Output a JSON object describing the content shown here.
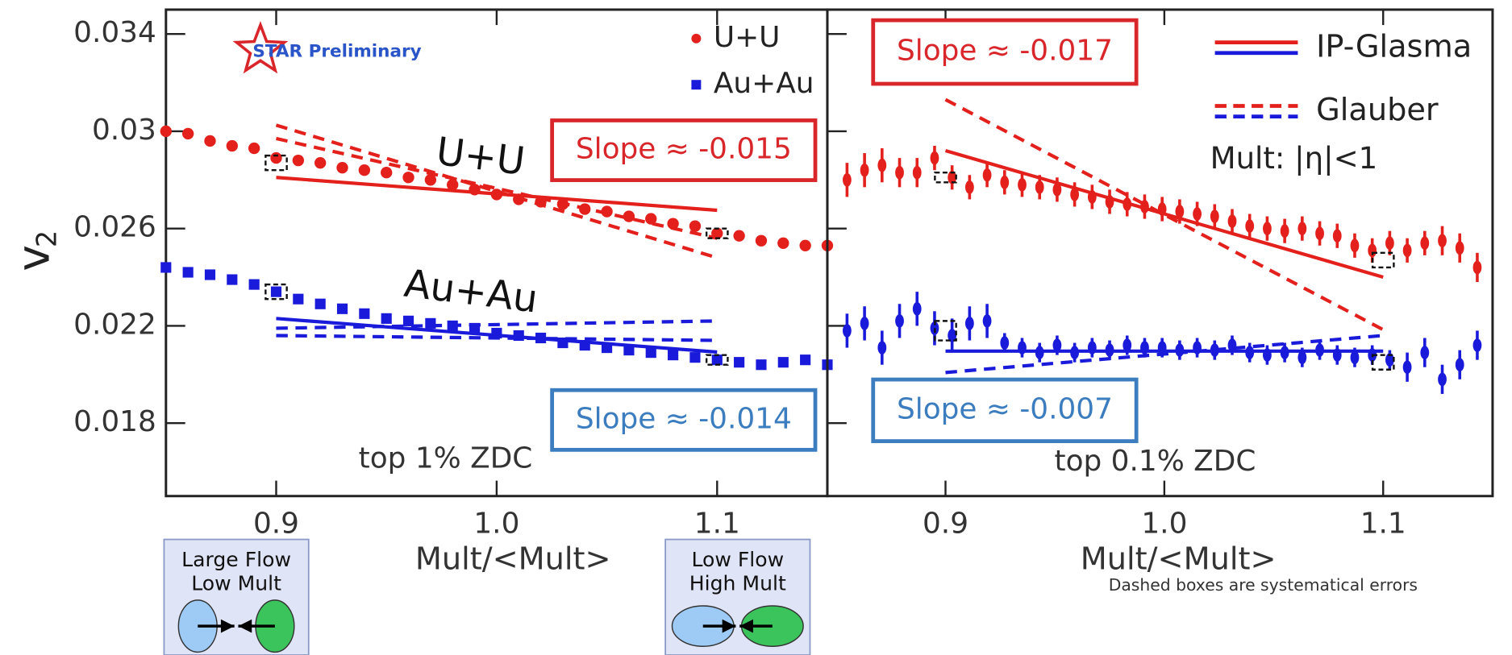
{
  "ylabel": "v",
  "ylabel_subscript": "2",
  "chart_data": [
    {
      "type": "scatter",
      "xlabel": "Mult/<Mult>",
      "xlim": [
        0.85,
        1.15
      ],
      "ylim": [
        0.015,
        0.035
      ],
      "xticks": [
        0.9,
        {
          "value": 1,
          "label": "1.0"
        },
        1.1
      ],
      "yticks": [
        0.018,
        0.022,
        0.026,
        0.03,
        0.034
      ],
      "legend": "upper right",
      "logo": "STAR Preliminary",
      "series": [
        {
          "name": "U+U",
          "color": "#e3201b",
          "marker": "circle",
          "x": [
            0.85,
            0.86,
            0.87,
            0.88,
            0.89,
            0.9,
            0.91,
            0.92,
            0.93,
            0.94,
            0.95,
            0.96,
            0.97,
            0.98,
            0.99,
            1.0,
            1.01,
            1.02,
            1.03,
            1.04,
            1.05,
            1.06,
            1.07,
            1.08,
            1.09,
            1.1,
            1.11,
            1.12,
            1.13,
            1.14,
            1.15
          ],
          "values": [
            0.03,
            0.0299,
            0.0296,
            0.0294,
            0.0293,
            0.0289,
            0.0288,
            0.0287,
            0.0285,
            0.0284,
            0.0283,
            0.0281,
            0.028,
            0.0278,
            0.0276,
            0.0274,
            0.0272,
            0.0271,
            0.027,
            0.0268,
            0.0267,
            0.0265,
            0.0264,
            0.0262,
            0.0261,
            0.0258,
            0.0257,
            0.0255,
            0.0254,
            0.0253,
            0.0253
          ]
        },
        {
          "name": "Au+Au",
          "color": "#1a1adb",
          "marker": "square",
          "x": [
            0.85,
            0.86,
            0.87,
            0.88,
            0.89,
            0.9,
            0.91,
            0.92,
            0.93,
            0.94,
            0.95,
            0.96,
            0.97,
            0.98,
            0.99,
            1.0,
            1.01,
            1.02,
            1.03,
            1.04,
            1.05,
            1.06,
            1.07,
            1.08,
            1.09,
            1.1,
            1.11,
            1.12,
            1.13,
            1.14,
            1.15
          ],
          "values": [
            0.0244,
            0.0242,
            0.0241,
            0.0239,
            0.0237,
            0.0234,
            0.0231,
            0.0229,
            0.0227,
            0.0225,
            0.0223,
            0.0222,
            0.0221,
            0.022,
            0.0219,
            0.0217,
            0.0216,
            0.0215,
            0.0213,
            0.0212,
            0.0211,
            0.021,
            0.0209,
            0.0208,
            0.0207,
            0.0206,
            0.0205,
            0.0204,
            0.0205,
            0.0206,
            0.0204
          ]
        }
      ],
      "models": [
        {
          "color": "#e3201b",
          "style": "solid",
          "x": [
            0.9,
            1.1
          ],
          "values": [
            0.0281,
            0.02675
          ]
        },
        {
          "color": "#e3201b",
          "style": "dashed",
          "x": [
            0.9,
            1.1
          ],
          "values": [
            0.03025,
            0.0248
          ]
        },
        {
          "color": "#e3201b",
          "style": "dashed",
          "x": [
            0.9,
            1.1
          ],
          "values": [
            0.0297,
            0.0256
          ]
        },
        {
          "color": "#1a1adb",
          "style": "solid",
          "x": [
            0.9,
            1.1
          ],
          "values": [
            0.0223,
            0.02092
          ]
        },
        {
          "color": "#1a1adb",
          "style": "dashed",
          "x": [
            0.9,
            1.1
          ],
          "values": [
            0.0219,
            0.0222
          ]
        },
        {
          "color": "#1a1adb",
          "style": "dashed",
          "x": [
            0.9,
            1.1
          ],
          "values": [
            0.0216,
            0.0214
          ]
        }
      ],
      "systematics": [
        {
          "x": 0.9,
          "value": 0.0287,
          "error": 0.0003
        },
        {
          "x": 0.9,
          "value": 0.0234,
          "error": 0.0003
        },
        {
          "x": 1.1,
          "value": 0.0258,
          "error": 0.0002
        },
        {
          "x": 1.1,
          "value": 0.0206,
          "error": 0.0002
        }
      ],
      "annotations": [
        {
          "text": "U+U",
          "color": "#111111"
        },
        {
          "text": "Au+Au",
          "color": "#111111"
        },
        {
          "text": "Slope ≈ -0.015",
          "color": "#d9262a",
          "boxed": true
        },
        {
          "text": "Slope ≈ -0.014",
          "color": "#3b7dbf",
          "boxed": true
        },
        {
          "text": "top 1% ZDC",
          "color": "#333333"
        }
      ]
    },
    {
      "type": "errorbar",
      "xlabel": "Mult/<Mult>",
      "xlim": [
        0.846,
        1.15
      ],
      "ylim": [
        0.015,
        0.035
      ],
      "xticks": [
        0.9,
        {
          "value": 1,
          "label": "1.0"
        },
        1.1
      ],
      "legend_entries": [
        {
          "name": "IP-Glasma",
          "style": "solid",
          "colors": [
            "#e3201b",
            "#1a1adb"
          ]
        },
        {
          "name": "Glauber",
          "style": "dashed",
          "colors": [
            "#e3201b",
            "#1a1adb"
          ]
        }
      ],
      "series": [
        {
          "color": "#e3201b",
          "marker": "circle",
          "x": [
            0.855,
            0.863,
            0.871,
            0.879,
            0.887,
            0.895,
            0.903,
            0.911,
            0.919,
            0.927,
            0.935,
            0.943,
            0.951,
            0.959,
            0.967,
            0.975,
            0.983,
            0.991,
            0.999,
            1.007,
            1.015,
            1.023,
            1.031,
            1.039,
            1.047,
            1.055,
            1.063,
            1.071,
            1.079,
            1.087,
            1.095,
            1.103,
            1.111,
            1.119,
            1.127,
            1.135,
            1.143
          ],
          "values": [
            0.028,
            0.0284,
            0.0286,
            0.0283,
            0.0283,
            0.0289,
            0.0281,
            0.0277,
            0.0282,
            0.0279,
            0.0278,
            0.0277,
            0.0276,
            0.0274,
            0.0273,
            0.0271,
            0.027,
            0.0269,
            0.0268,
            0.0267,
            0.0266,
            0.0265,
            0.0263,
            0.0261,
            0.026,
            0.0259,
            0.026,
            0.0258,
            0.0257,
            0.0253,
            0.0251,
            0.0254,
            0.0251,
            0.0254,
            0.0255,
            0.0252,
            0.0244
          ],
          "errors": [
            0.0007,
            0.0007,
            0.0007,
            0.0006,
            0.0006,
            0.0005,
            0.0005,
            0.0005,
            0.0005,
            0.0005,
            0.0005,
            0.0005,
            0.0005,
            0.0005,
            0.0005,
            0.0005,
            0.0005,
            0.0005,
            0.0005,
            0.0005,
            0.0005,
            0.0005,
            0.0005,
            0.0005,
            0.0005,
            0.0005,
            0.0005,
            0.0005,
            0.0005,
            0.0005,
            0.0005,
            0.0005,
            0.0005,
            0.0005,
            0.0006,
            0.0006,
            0.0006
          ]
        },
        {
          "color": "#1a1adb",
          "marker": "circle",
          "x": [
            0.855,
            0.863,
            0.871,
            0.879,
            0.887,
            0.895,
            0.903,
            0.911,
            0.919,
            0.927,
            0.935,
            0.943,
            0.951,
            0.959,
            0.967,
            0.975,
            0.983,
            0.991,
            0.999,
            1.007,
            1.015,
            1.023,
            1.031,
            1.039,
            1.047,
            1.055,
            1.063,
            1.071,
            1.079,
            1.087,
            1.095,
            1.103,
            1.111,
            1.119,
            1.127,
            1.135,
            1.143
          ],
          "values": [
            0.0218,
            0.0221,
            0.0211,
            0.0222,
            0.0227,
            0.0219,
            0.0216,
            0.0221,
            0.0222,
            0.0213,
            0.0211,
            0.0209,
            0.0212,
            0.0209,
            0.0211,
            0.021,
            0.0212,
            0.0211,
            0.0211,
            0.021,
            0.0211,
            0.021,
            0.0212,
            0.0209,
            0.0208,
            0.0209,
            0.0207,
            0.021,
            0.0208,
            0.0207,
            0.0208,
            0.0206,
            0.0203,
            0.0209,
            0.0198,
            0.0204,
            0.0212
          ],
          "errors": [
            0.0007,
            0.0007,
            0.0007,
            0.0007,
            0.0007,
            0.0007,
            0.0007,
            0.0007,
            0.0007,
            0.0004,
            0.0004,
            0.0004,
            0.0004,
            0.0004,
            0.0004,
            0.0004,
            0.0004,
            0.0004,
            0.0004,
            0.0004,
            0.0004,
            0.0004,
            0.0004,
            0.0004,
            0.0004,
            0.0004,
            0.0004,
            0.0004,
            0.0004,
            0.0004,
            0.0004,
            0.0004,
            0.0006,
            0.0006,
            0.0006,
            0.0006,
            0.0006
          ]
        }
      ],
      "models": [
        {
          "color": "#e3201b",
          "style": "solid",
          "x": [
            0.9,
            1.1
          ],
          "values": [
            0.0292,
            0.024
          ]
        },
        {
          "color": "#e3201b",
          "style": "dashed",
          "x": [
            0.9,
            1.1
          ],
          "values": [
            0.0313,
            0.02184
          ]
        },
        {
          "color": "#1a1adb",
          "style": "solid",
          "x": [
            0.9,
            1.1
          ],
          "values": [
            0.02096,
            0.02096
          ]
        },
        {
          "color": "#1a1adb",
          "style": "dashed",
          "x": [
            0.9,
            1.1
          ],
          "values": [
            0.02008,
            0.0216
          ]
        }
      ],
      "systematics": [
        {
          "x": 0.9,
          "value": 0.0281,
          "error": 0.0002
        },
        {
          "x": 0.9,
          "value": 0.0218,
          "error": 0.0004
        },
        {
          "x": 1.1,
          "value": 0.0247,
          "error": 0.0003
        },
        {
          "x": 1.1,
          "value": 0.0205,
          "error": 0.0003
        }
      ],
      "annotations": [
        {
          "text": "Slope ≈ -0.017",
          "color": "#d9262a",
          "boxed": true
        },
        {
          "text": "Slope ≈ -0.007",
          "color": "#3b7dbf",
          "boxed": true
        },
        {
          "text": "top 0.1% ZDC",
          "color": "#333333"
        },
        {
          "text": "Mult: |η|<1",
          "color": "#222222"
        }
      ],
      "note": "Dashed boxes are systematical errors"
    }
  ],
  "insets": [
    {
      "lines": [
        "Large Flow",
        "Low Mult"
      ]
    },
    {
      "lines": [
        "Low Flow",
        "High Mult"
      ]
    }
  ]
}
